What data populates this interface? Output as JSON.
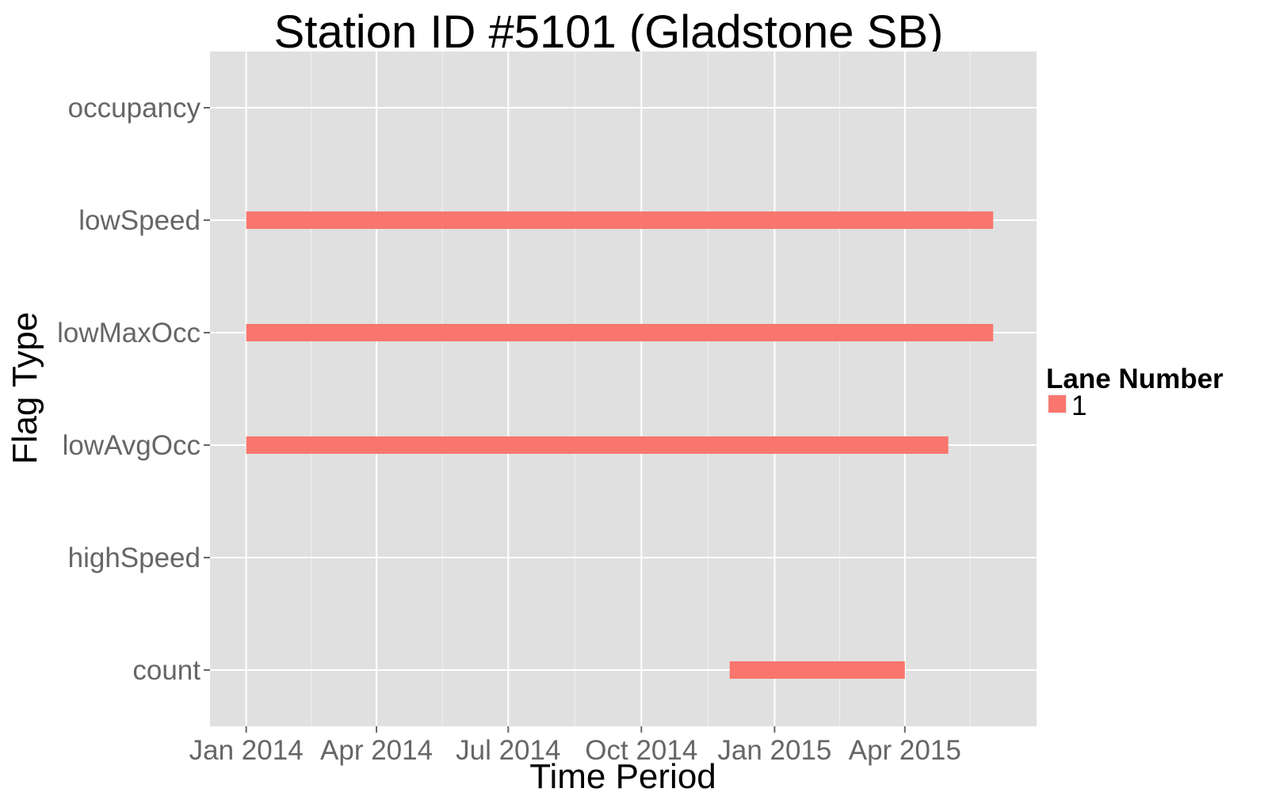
{
  "chart_data": {
    "type": "bar",
    "orientation": "horizontal-range",
    "title": "Station ID #5101 (Gladstone SB)",
    "xlabel": "Time Period",
    "ylabel": "Flag Type",
    "categories": [
      "count",
      "highSpeed",
      "lowAvgOcc",
      "lowMaxOcc",
      "lowSpeed",
      "occupancy"
    ],
    "x_ticks": [
      {
        "date": "2014-01-01",
        "label": "Jan 2014"
      },
      {
        "date": "2014-04-01",
        "label": "Apr 2014"
      },
      {
        "date": "2014-07-01",
        "label": "Jul 2014"
      },
      {
        "date": "2014-10-01",
        "label": "Oct 2014"
      },
      {
        "date": "2015-01-01",
        "label": "Jan 2015"
      },
      {
        "date": "2015-04-01",
        "label": "Apr 2015"
      }
    ],
    "xlim": [
      "2013-12-07",
      "2015-07-01"
    ],
    "series": [
      {
        "name": "1",
        "color": "#F8766D",
        "segments": [
          {
            "category": "lowSpeed",
            "start": "2014-01-01",
            "end": "2015-06-01"
          },
          {
            "category": "lowMaxOcc",
            "start": "2014-01-01",
            "end": "2015-06-01"
          },
          {
            "category": "lowAvgOcc",
            "start": "2014-01-01",
            "end": "2015-05-01"
          },
          {
            "category": "count",
            "start": "2014-12-01",
            "end": "2015-04-01"
          }
        ]
      }
    ],
    "legend": {
      "title": "Lane Number",
      "position": "right"
    },
    "grid": true,
    "panel_background": "#E0E0E0",
    "grid_color": "#FFFFFF"
  }
}
